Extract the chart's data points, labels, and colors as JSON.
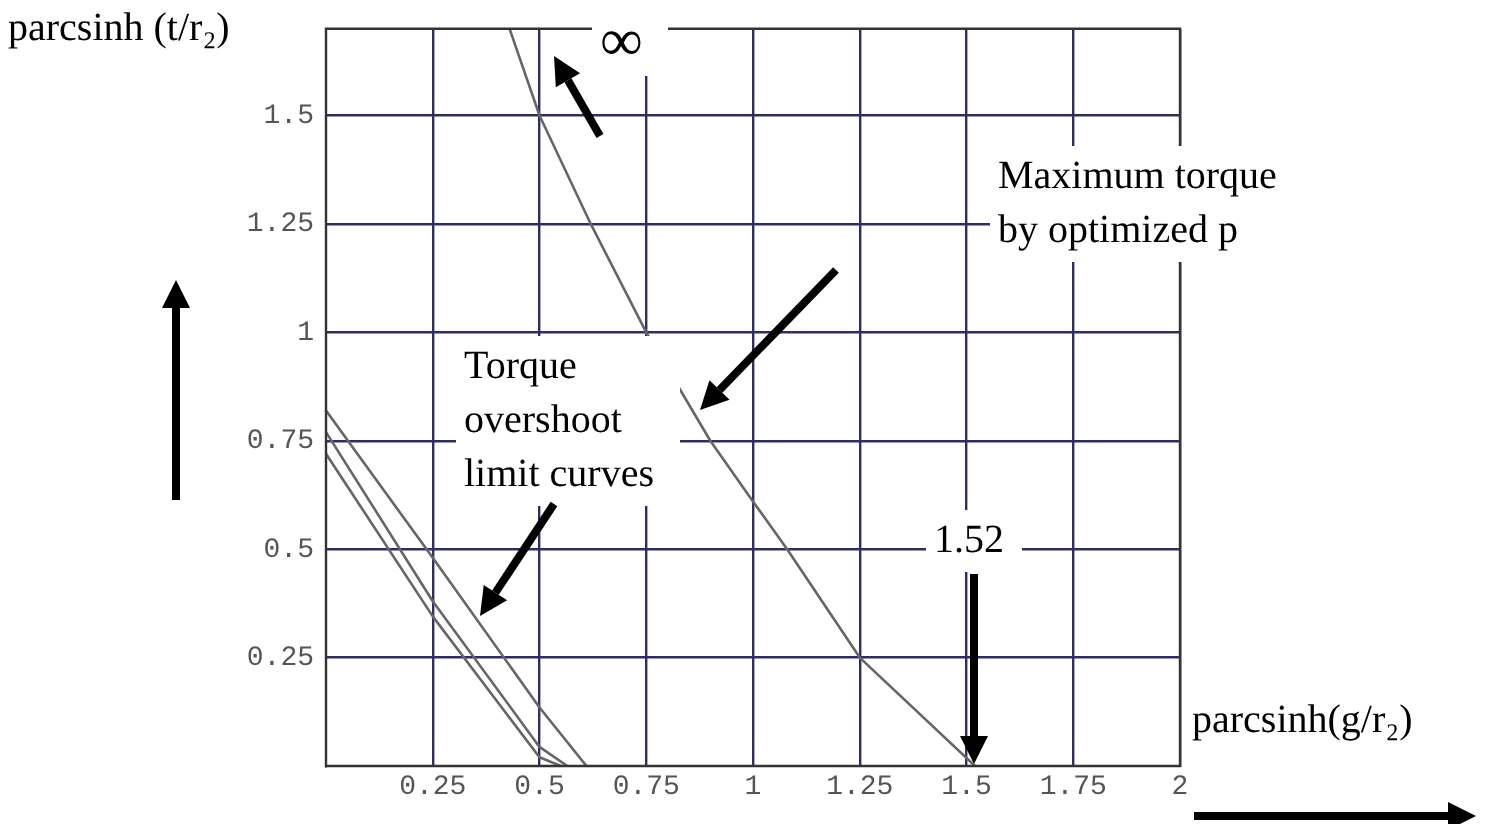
{
  "chart_data": {
    "type": "line",
    "xlabel": "parcsinh(g/r₂)",
    "ylabel": "parcsinh (t/r₂)",
    "xlim": [
      0,
      2
    ],
    "ylim": [
      0,
      1.7
    ],
    "xticks": [
      0.25,
      0.5,
      0.75,
      1,
      1.25,
      1.5,
      1.75,
      2
    ],
    "yticks": [
      0.25,
      0.5,
      0.75,
      1,
      1.25,
      1.5
    ],
    "grid": true,
    "legend": false,
    "marker": "none",
    "line_style": "solid",
    "series": [
      {
        "color": "#666666",
        "x": [
          0,
          0.25,
          0.5,
          0.61
        ],
        "values": [
          0.82,
          0.48,
          0.135,
          0
        ]
      },
      {
        "color": "#666666",
        "x": [
          0,
          0.25,
          0.5,
          0.565
        ],
        "values": [
          0.77,
          0.38,
          0.044,
          0
        ]
      },
      {
        "color": "#666666",
        "x": [
          0,
          0.25,
          0.5,
          0.55
        ],
        "values": [
          0.72,
          0.345,
          0.02,
          0
        ]
      },
      {
        "color": "#666666",
        "x": [
          0.43,
          0.5,
          0.62,
          0.75,
          0.9,
          1.0,
          1.08,
          1.25,
          1.52
        ],
        "values": [
          1.7,
          1.5,
          1.25,
          1,
          0.75,
          0.61,
          0.5,
          0.25,
          0
        ]
      }
    ],
    "annotations": [
      "∞",
      "Maximum torque by optimized p",
      "Torque overshoot limit curves",
      "1.52"
    ]
  }
}
